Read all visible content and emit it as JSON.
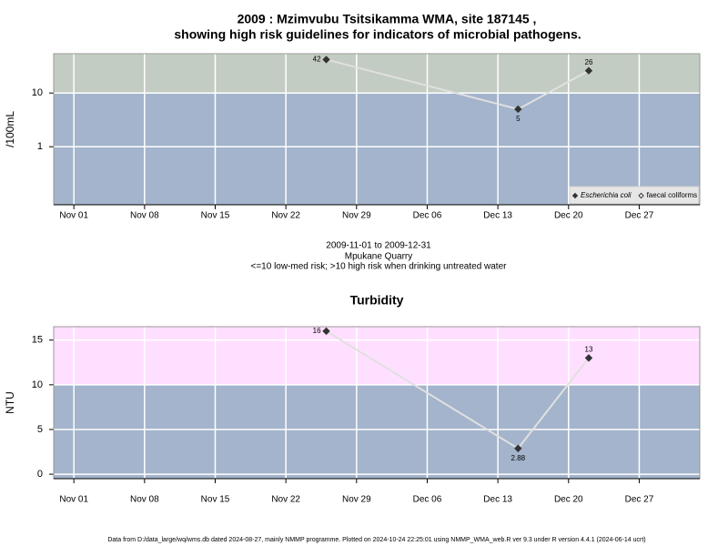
{
  "chart_data": [
    {
      "type": "line",
      "title": "2009 : Mzimvubu Tsitsikamma WMA, site 187145 ,",
      "subtitle": "showing high risk guidelines for indicators of microbial pathogens.",
      "y_label": "/100mL",
      "x_label_lines": [
        "2009-11-01 to 2009-12-31",
        "Mpukane Quarry",
        "<=10 low-med risk; >10 high risk when drinking untreated water"
      ],
      "x": [
        "2009-11-26",
        "2009-12-15",
        "2009-12-22"
      ],
      "series": [
        {
          "name": "Escherichia coli",
          "color": "#333333",
          "values": [
            42,
            5,
            26
          ]
        },
        {
          "name": "faecal coliforms",
          "color": "#333333",
          "values": [
            null,
            null,
            null
          ]
        }
      ],
      "line_color": "#e0e0e0",
      "log_y": true,
      "ylim": [
        0.083,
        54
      ],
      "yticks": [
        1,
        10
      ],
      "threshold": 10,
      "above_color": "#c3ccc2",
      "below_color": "#a3b4cc",
      "xlim": [
        "2009-10-30",
        "2010-01-02"
      ],
      "xticks": [
        {
          "value": "2009-11-01",
          "label": "Nov 01"
        },
        {
          "value": "2009-11-08",
          "label": "Nov 08"
        },
        {
          "value": "2009-11-15",
          "label": "Nov 15"
        },
        {
          "value": "2009-11-22",
          "label": "Nov 22"
        },
        {
          "value": "2009-11-29",
          "label": "Nov 29"
        },
        {
          "value": "2009-12-06",
          "label": "Dec 06"
        },
        {
          "value": "2009-12-13",
          "label": "Dec 13"
        },
        {
          "value": "2009-12-20",
          "label": "Dec 20"
        },
        {
          "value": "2009-12-27",
          "label": "Dec 27"
        }
      ],
      "grid": true,
      "legend": "bottom-right"
    },
    {
      "type": "line",
      "title": "Turbidity",
      "y_label": "NTU",
      "x": [
        "2009-11-26",
        "2009-12-15",
        "2009-12-22"
      ],
      "series": [
        {
          "color": "#333333",
          "values": [
            16,
            2.88,
            13
          ]
        }
      ],
      "line_color": "#e0e0e0",
      "log_y": false,
      "ylim": [
        -0.5,
        16.5
      ],
      "yticks": [
        0,
        5,
        10,
        15
      ],
      "threshold": 10,
      "above_color": "#ffdfff",
      "below_color": "#a3b4cc",
      "xlim": [
        "2009-10-30",
        "2010-01-02"
      ],
      "xticks": [
        {
          "value": "2009-11-01",
          "label": "Nov 01"
        },
        {
          "value": "2009-11-08",
          "label": "Nov 08"
        },
        {
          "value": "2009-11-15",
          "label": "Nov 15"
        },
        {
          "value": "2009-11-22",
          "label": "Nov 22"
        },
        {
          "value": "2009-11-29",
          "label": "Nov 29"
        },
        {
          "value": "2009-12-06",
          "label": "Dec 06"
        },
        {
          "value": "2009-12-13",
          "label": "Dec 13"
        },
        {
          "value": "2009-12-20",
          "label": "Dec 20"
        },
        {
          "value": "2009-12-27",
          "label": "Dec 27"
        }
      ],
      "grid": true
    }
  ],
  "footer": "Data from D:/data_large/wq/wms.db dated 2024-08-27, mainly NMMP programme. Plotted on 2024-10-24 22:25:01 using NMMP_WMA_web.R ver 9.3 under R version 4.4.1 (2024-06-14 ucrt)"
}
